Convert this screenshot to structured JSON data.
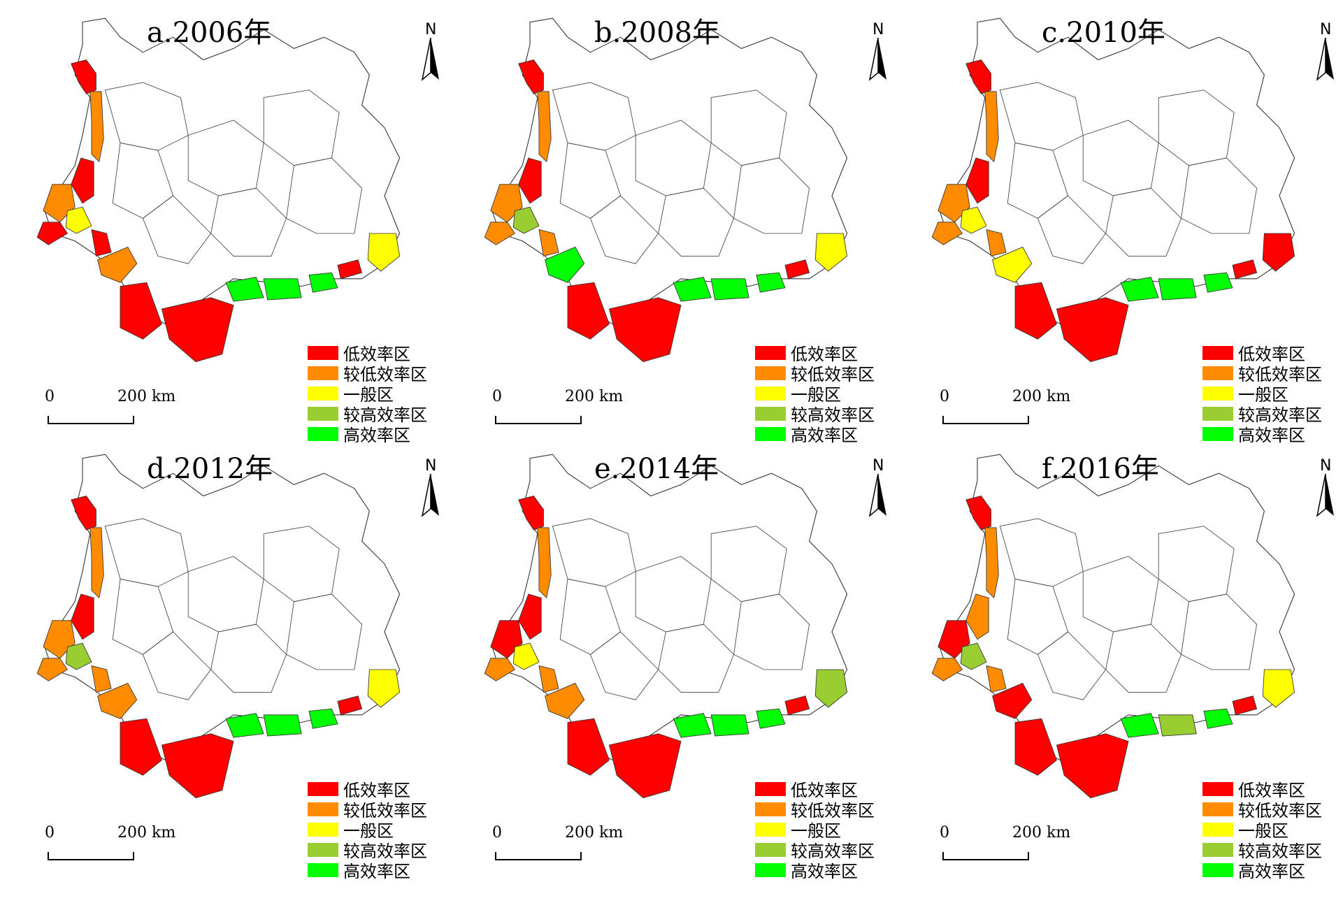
{
  "panels": [
    {
      "title": "a.2006年",
      "regions": [
        "r1",
        "r2",
        "r3",
        "r4",
        "r5",
        "y1",
        "r6",
        "o7",
        "r8",
        "r9",
        "g1",
        "g2",
        "g3",
        "r10",
        "y2"
      ],
      "fills": {
        "r1": "low",
        "r2": "mid-low",
        "r3": "low",
        "r4": "mid-low",
        "r5": "low",
        "y1": "general",
        "r6": "low",
        "o7": "mid-low",
        "r8": "low",
        "r9": "low",
        "g1": "high",
        "g2": "high",
        "g3": "high",
        "r10": "low",
        "y2": "general"
      }
    },
    {
      "title": "b.2008年",
      "regions": [
        "r1",
        "r2",
        "r3",
        "r4",
        "r5",
        "y1",
        "r6",
        "o7",
        "r8",
        "r9",
        "g1",
        "g2",
        "g3",
        "r10",
        "y2"
      ],
      "fills": {
        "r1": "low",
        "r2": "mid-low",
        "r3": "low",
        "r4": "mid-low",
        "r5": "mid-low",
        "y1": "mid-high",
        "r6": "mid-low",
        "o7": "high",
        "r8": "low",
        "r9": "low",
        "g1": "high",
        "g2": "high",
        "g3": "high",
        "r10": "low",
        "y2": "general"
      }
    },
    {
      "title": "c.2010年",
      "regions": [
        "r1",
        "r2",
        "r3",
        "r4",
        "r5",
        "y1",
        "r6",
        "o7",
        "r8",
        "r9",
        "g1",
        "g2",
        "g3",
        "r10",
        "y2"
      ],
      "fills": {
        "r1": "low",
        "r2": "mid-low",
        "r3": "low",
        "r4": "mid-low",
        "r5": "mid-low",
        "y1": "general",
        "r6": "mid-low",
        "o7": "general",
        "r8": "low",
        "r9": "low",
        "g1": "high",
        "g2": "high",
        "g3": "high",
        "r10": "low",
        "y2": "low"
      }
    },
    {
      "title": "d.2012年",
      "regions": [
        "r1",
        "r2",
        "r3",
        "r4",
        "r5",
        "y1",
        "r6",
        "o7",
        "r8",
        "r9",
        "g1",
        "g2",
        "g3",
        "r10",
        "y2"
      ],
      "fills": {
        "r1": "low",
        "r2": "mid-low",
        "r3": "low",
        "r4": "mid-low",
        "r5": "mid-low",
        "y1": "mid-high",
        "r6": "mid-low",
        "o7": "mid-low",
        "r8": "low",
        "r9": "low",
        "g1": "high",
        "g2": "high",
        "g3": "high",
        "r10": "low",
        "y2": "general"
      }
    },
    {
      "title": "e.2014年",
      "regions": [
        "r1",
        "r2",
        "r3",
        "r4",
        "r5",
        "y1",
        "r6",
        "o7",
        "r8",
        "r9",
        "g1",
        "g2",
        "g3",
        "r10",
        "y2"
      ],
      "fills": {
        "r1": "low",
        "r2": "mid-low",
        "r3": "low",
        "r4": "low",
        "r5": "mid-low",
        "y1": "general",
        "r6": "mid-low",
        "o7": "mid-low",
        "r8": "low",
        "r9": "low",
        "g1": "high",
        "g2": "high",
        "g3": "high",
        "r10": "low",
        "y2": "mid-high"
      }
    },
    {
      "title": "f.2016年",
      "regions": [
        "r1",
        "r2",
        "r3",
        "r4",
        "r5",
        "y1",
        "r6",
        "o7",
        "r8",
        "r9",
        "g1",
        "g2",
        "g3",
        "r10",
        "y2"
      ],
      "fills": {
        "r1": "low",
        "r2": "mid-low",
        "r3": "mid-low",
        "r4": "low",
        "r5": "mid-low",
        "y1": "mid-high",
        "r6": "mid-low",
        "o7": "low",
        "r8": "low",
        "r9": "low",
        "g1": "high",
        "g2": "mid-high",
        "g3": "high",
        "r10": "low",
        "y2": "general"
      }
    }
  ],
  "north_label": "N",
  "scale": {
    "zero": "0",
    "end": "200 km"
  },
  "legend": [
    {
      "key": "low",
      "label": "低效率区",
      "color": "#ff0000"
    },
    {
      "key": "mid-low",
      "label": "较低效率区",
      "color": "#ff8c00"
    },
    {
      "key": "general",
      "label": "一般区",
      "color": "#ffff00"
    },
    {
      "key": "mid-high",
      "label": "较高效率区",
      "color": "#9acd32"
    },
    {
      "key": "high",
      "label": "高效率区",
      "color": "#00ff00"
    }
  ]
}
